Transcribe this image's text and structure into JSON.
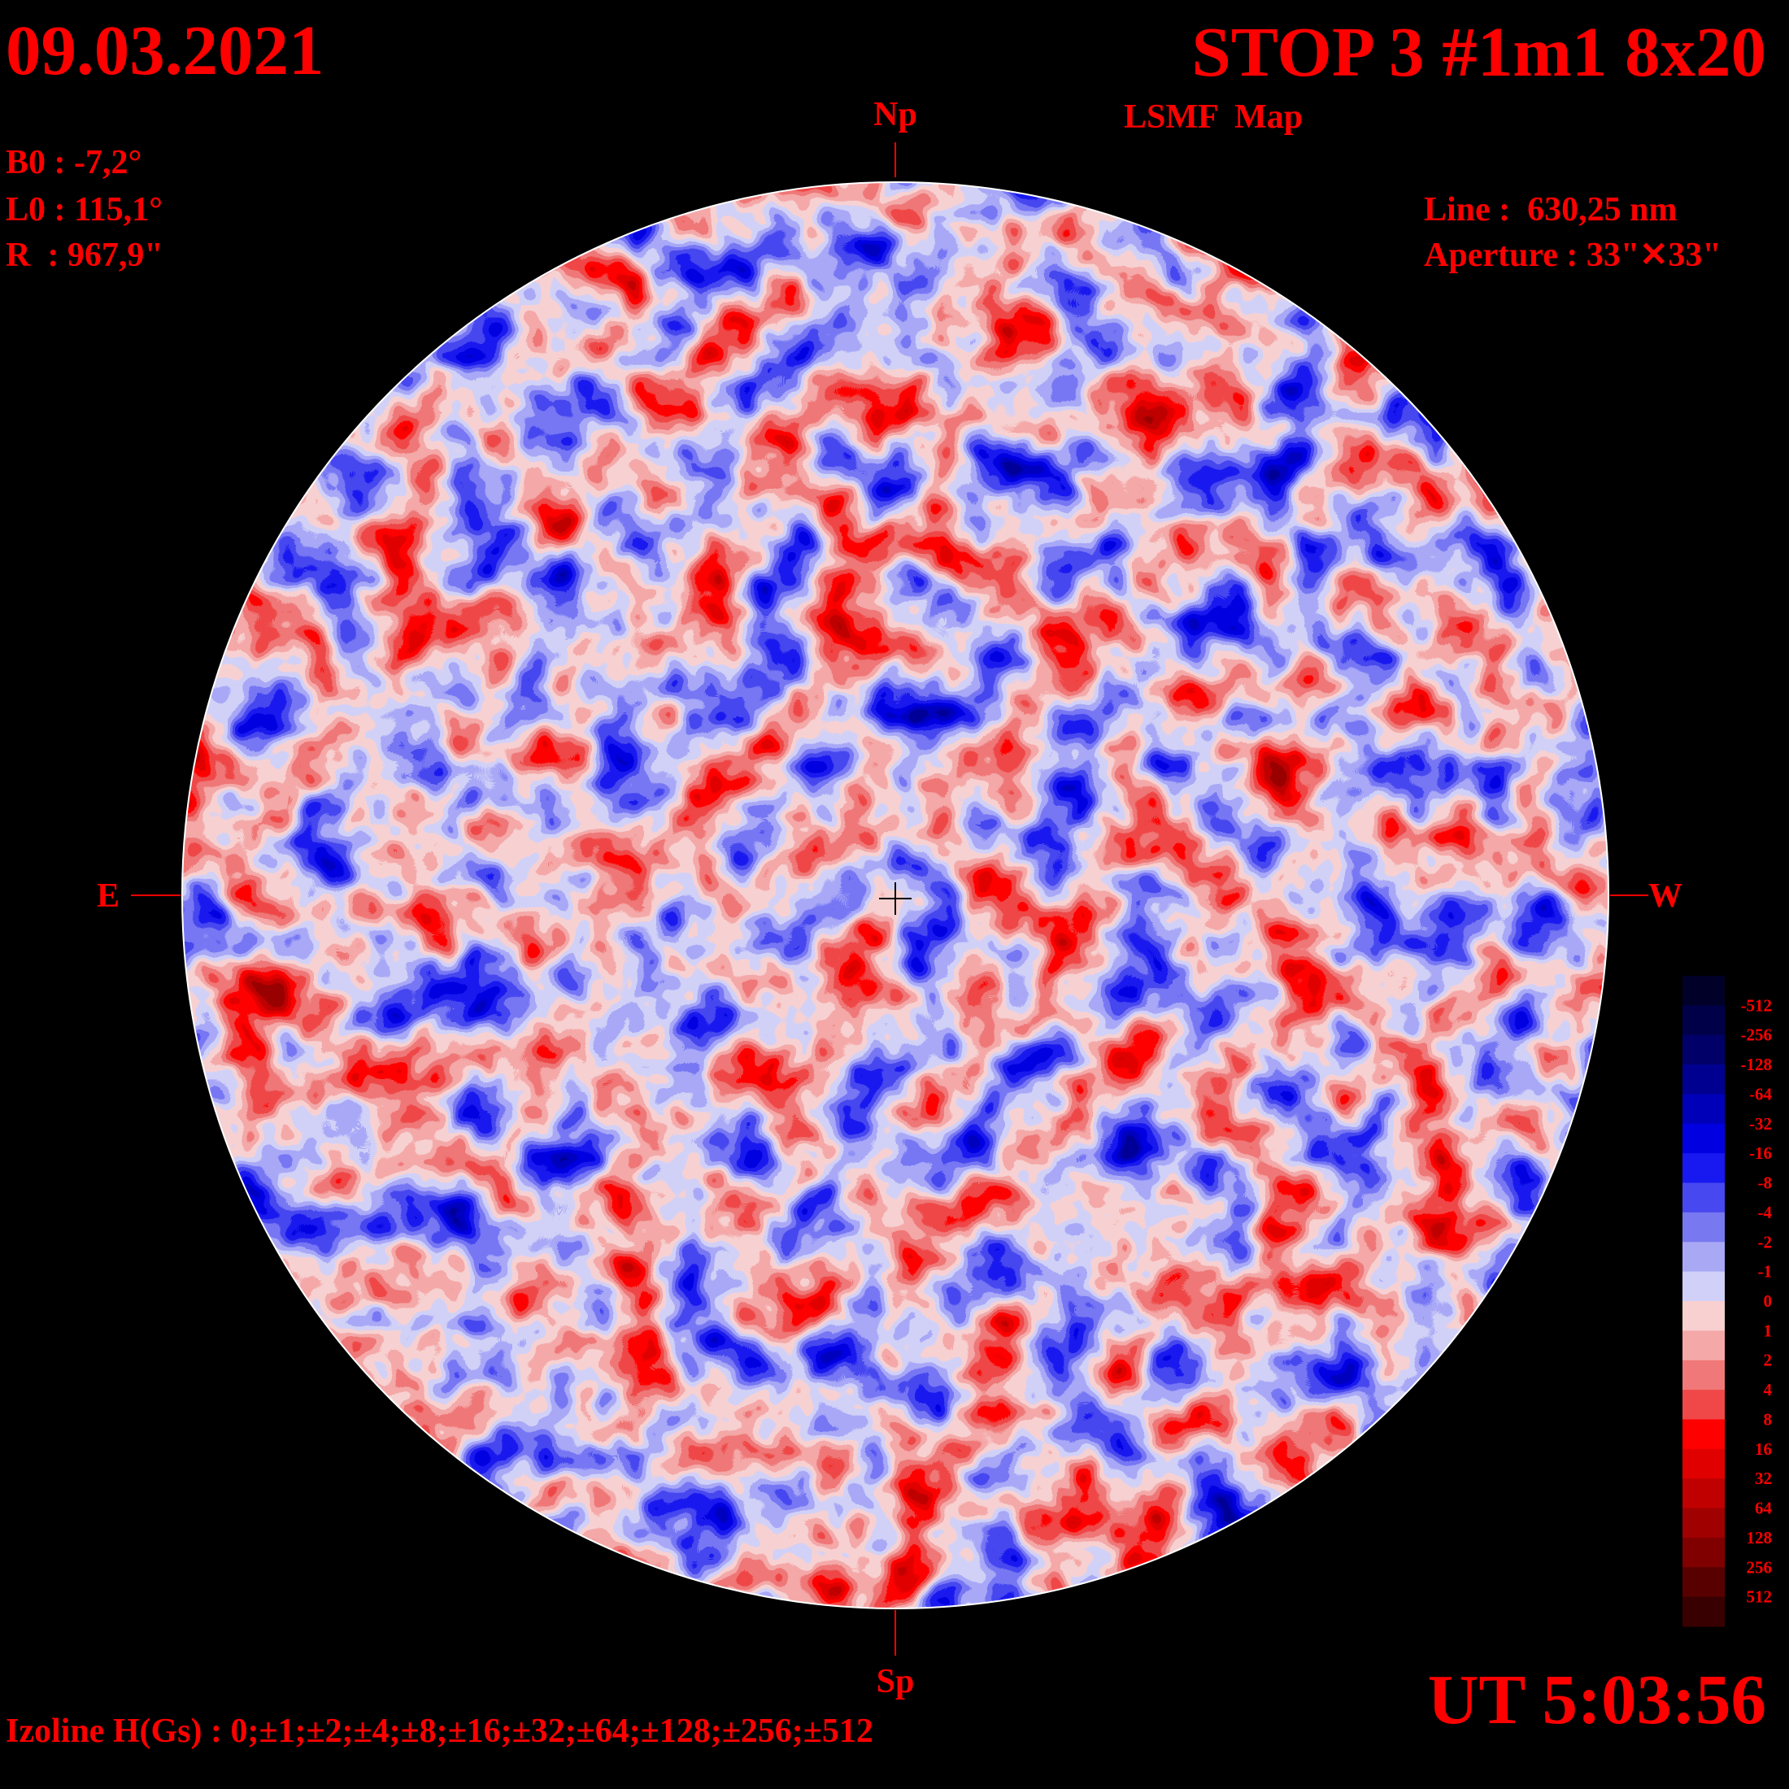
{
  "header": {
    "date": "09.03.2021",
    "title": "STOP 3 #1m1 8x20",
    "subtitle": "LSMF  Map",
    "ut": "UT 5:03:56"
  },
  "params": {
    "b0": "B0 : -7,2°",
    "l0": "L0 : 115,1°",
    "r": "R  : 967,9\"",
    "line": "Line :  630,25 nm",
    "aperture": "Aperture : 33\"✕33\""
  },
  "directions": {
    "north": "Np",
    "south": "Sp",
    "east": "E",
    "west": "W"
  },
  "footer": "Izoline H(Gs) : 0;±1;±2;±4;±8;±16;±32;±64;±128;±256;±512",
  "colorbar": {
    "labels": [
      "-512",
      "-256",
      "-128",
      "-64",
      "-32",
      "-16",
      "-8",
      "-4",
      "-2",
      "-1",
      "0",
      "1",
      "2",
      "4",
      "8",
      "16",
      "32",
      "64",
      "128",
      "256",
      "512"
    ],
    "colors": [
      "#000028",
      "#000048",
      "#000068",
      "#000090",
      "#0000b8",
      "#0000e0",
      "#1818f0",
      "#4848f0",
      "#7878f0",
      "#a8a8f5",
      "#d0d0f8",
      "#f8d0d0",
      "#f5a8a8",
      "#f07878",
      "#f04848",
      "#ff0000",
      "#e00000",
      "#c00000",
      "#a00000",
      "#800000",
      "#580000",
      "#380000"
    ]
  }
}
